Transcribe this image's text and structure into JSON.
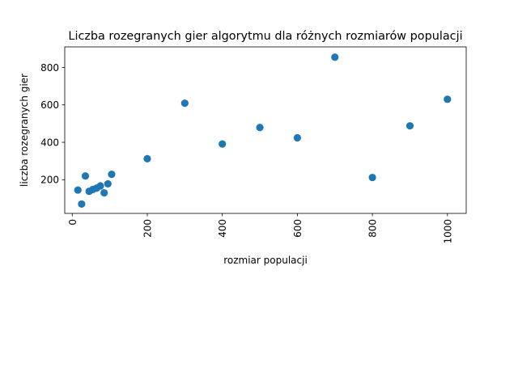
{
  "chart_data": {
    "type": "scatter",
    "title": "Liczba rozegranych gier algorytmu dla różnych rozmiarów populacji",
    "xlabel": "rozmiar populacji",
    "ylabel": "liczba rozegranych gier",
    "xlim": [
      -20,
      1050
    ],
    "ylim": [
      20,
      910
    ],
    "xticks": [
      0,
      200,
      400,
      600,
      800,
      1000
    ],
    "yticks": [
      200,
      400,
      600,
      800
    ],
    "xtick_rotation": 90,
    "grid": false,
    "legend": null,
    "color": "#1f77b4",
    "points": [
      {
        "x": 15,
        "y": 145
      },
      {
        "x": 25,
        "y": 70
      },
      {
        "x": 35,
        "y": 220
      },
      {
        "x": 45,
        "y": 138
      },
      {
        "x": 55,
        "y": 148
      },
      {
        "x": 65,
        "y": 155
      },
      {
        "x": 75,
        "y": 167
      },
      {
        "x": 85,
        "y": 130
      },
      {
        "x": 95,
        "y": 178
      },
      {
        "x": 105,
        "y": 229
      },
      {
        "x": 200,
        "y": 312
      },
      {
        "x": 300,
        "y": 609
      },
      {
        "x": 400,
        "y": 391
      },
      {
        "x": 500,
        "y": 479
      },
      {
        "x": 600,
        "y": 424
      },
      {
        "x": 700,
        "y": 855
      },
      {
        "x": 800,
        "y": 212
      },
      {
        "x": 900,
        "y": 488
      },
      {
        "x": 1000,
        "y": 630
      }
    ]
  }
}
